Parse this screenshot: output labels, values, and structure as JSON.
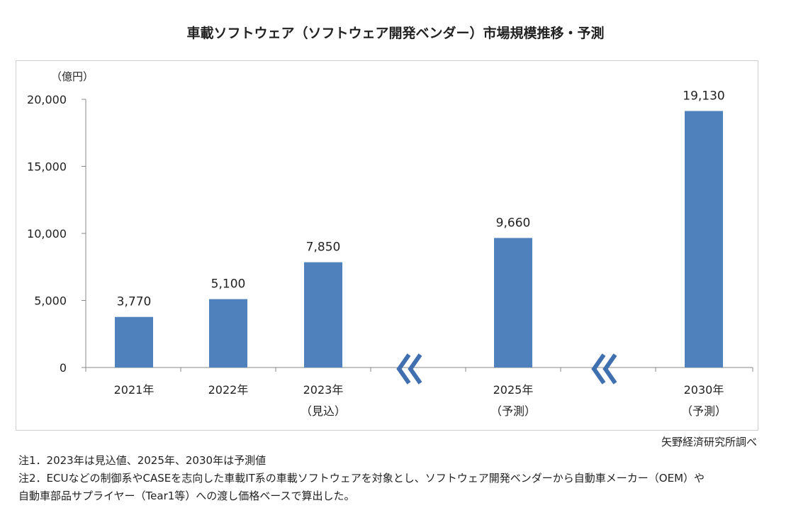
{
  "title": "車載ソフトウェア（ソフトウェア開発ベンダー）市場規模推移・予測",
  "chart_data": {
    "type": "bar",
    "unit_label": "（億円）",
    "ylim": [
      0,
      20000
    ],
    "yticks": [
      "0",
      "5,000",
      "10,000",
      "15,000",
      "20,000"
    ],
    "ytick_values": [
      0,
      5000,
      10000,
      15000,
      20000
    ],
    "categories": [
      {
        "label": "2021年",
        "sub": ""
      },
      {
        "label": "2022年",
        "sub": ""
      },
      {
        "label": "2023年",
        "sub": "（見込）"
      },
      {
        "label": "2025年",
        "sub": "（予測）"
      },
      {
        "label": "2030年",
        "sub": "（予測）"
      }
    ],
    "values": [
      3770,
      5100,
      7850,
      9660,
      19130
    ],
    "value_labels": [
      "3,770",
      "5,100",
      "7,850",
      "9,660",
      "19,130"
    ],
    "axis_breaks": [
      "between-2023-2025",
      "between-2025-2030"
    ],
    "bar_color": "#4f81bd",
    "break_color": "#3f6fae",
    "grid": false
  },
  "source": "矢野経済研究所調べ",
  "notes": [
    "注1．2023年は見込値、2025年、2030年は予測値",
    "注2．ECUなどの制御系やCASEを志向した車載IT系の車載ソフトウェアを対象とし、ソフトウェア開発ベンダーから自動車メーカー（OEM）や",
    "自動車部品サプライヤー（Tear1等）への渡し価格ベースで算出した。"
  ]
}
